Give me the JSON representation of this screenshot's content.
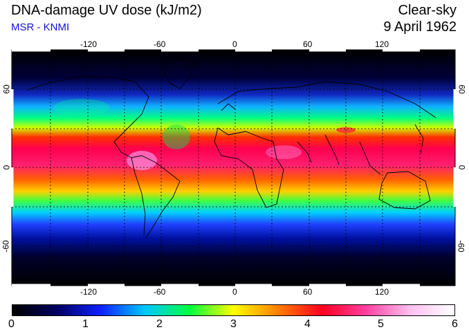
{
  "header": {
    "title": "DNA-damage UV dose (kJ/m2)",
    "subtitle": "MSR - KNMI",
    "condition": "Clear-sky",
    "date": "9 April 1962"
  },
  "map": {
    "lon_ticks": [
      "-120",
      "-60",
      "0",
      "60",
      "120"
    ],
    "lat_ticks_left": [
      "60",
      "0",
      "-60"
    ],
    "lat_ticks_right": [
      "60",
      "0",
      "-60"
    ],
    "lon_range": [
      -180,
      180
    ],
    "lat_range": [
      -90,
      90
    ],
    "gridlines": "dotted, every 30 degrees"
  },
  "colorbar": {
    "min": 0,
    "max": 6,
    "tick_labels": [
      "0",
      "1",
      "2",
      "3",
      "4",
      "5",
      "6"
    ],
    "colors": [
      "#000000",
      "#000060",
      "#1020ff",
      "#00c8ff",
      "#00ff40",
      "#ffff00",
      "#ff8000",
      "#ff0020",
      "#ff40a0",
      "#ffc0f0",
      "#ffffff"
    ]
  }
}
